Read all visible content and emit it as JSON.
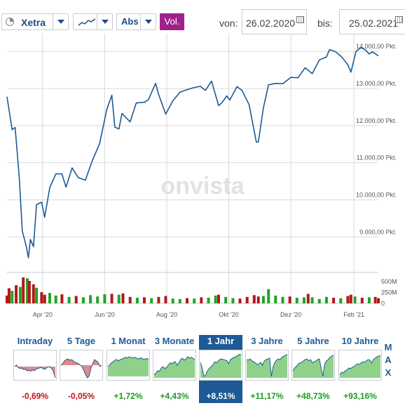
{
  "toolbar": {
    "exchange": "Xetra",
    "mode": "Abs",
    "volume_button": "Vol.",
    "from_label": "von:",
    "from_date": "26.02.2020",
    "to_label": "bis:",
    "to_date": "25.02.2021"
  },
  "watermark": "onvista",
  "colors": {
    "line": "#1d5a96",
    "vol_up": "#22a32a",
    "vol_down": "#b01a1a",
    "active_tile": "#1d5a96",
    "vol_button": "#a0208c"
  },
  "chart_data": {
    "type": "line",
    "title": "",
    "xlabel": "",
    "ylabel": "",
    "ylim": [
      8100,
      14250
    ],
    "y_ticks": [
      "9.000,00 Pkt.",
      "10.000,00 Pkt.",
      "11.000,00 Pkt.",
      "12.000,00 Pkt.",
      "13.000,00 Pkt.",
      "14.000,00 Pkt."
    ],
    "y_tick_values": [
      9000,
      10000,
      11000,
      12000,
      13000,
      14000
    ],
    "x_ticks": [
      "Apr '20",
      "Jun '20",
      "Aug '20",
      "Okt '20",
      "Dez '20",
      "Feb '21"
    ],
    "x_tick_dates": [
      "2020-04-01",
      "2020-06-01",
      "2020-08-01",
      "2020-10-01",
      "2020-12-01",
      "2021-02-01"
    ],
    "x_range": [
      "2020-02-26",
      "2021-02-25"
    ],
    "series": [
      {
        "x": [
          "2020-02-26",
          "2020-03-02",
          "2020-03-05",
          "2020-03-09",
          "2020-03-12",
          "2020-03-16",
          "2020-03-18",
          "2020-03-20",
          "2020-03-23",
          "2020-03-26",
          "2020-03-31",
          "2020-04-03",
          "2020-04-08",
          "2020-04-14",
          "2020-04-20",
          "2020-04-24",
          "2020-04-30",
          "2020-05-06",
          "2020-05-13",
          "2020-05-20",
          "2020-05-27",
          "2020-06-03",
          "2020-06-08",
          "2020-06-11",
          "2020-06-15",
          "2020-06-18",
          "2020-06-26",
          "2020-07-02",
          "2020-07-10",
          "2020-07-14",
          "2020-07-21",
          "2020-07-24",
          "2020-07-31",
          "2020-08-07",
          "2020-08-14",
          "2020-08-20",
          "2020-08-27",
          "2020-09-03",
          "2020-09-08",
          "2020-09-14",
          "2020-09-21",
          "2020-09-24",
          "2020-09-29",
          "2020-10-02",
          "2020-10-09",
          "2020-10-14",
          "2020-10-21",
          "2020-10-28",
          "2020-10-30",
          "2020-11-04",
          "2020-11-09",
          "2020-11-16",
          "2020-11-23",
          "2020-12-01",
          "2020-12-08",
          "2020-12-15",
          "2020-12-22",
          "2020-12-29",
          "2021-01-05",
          "2021-01-08",
          "2021-01-14",
          "2021-01-20",
          "2021-01-26",
          "2021-01-29",
          "2021-02-03",
          "2021-02-08",
          "2021-02-12",
          "2021-02-16",
          "2021-02-19",
          "2021-02-25"
        ],
        "y": [
          12780,
          11890,
          11950,
          10630,
          9160,
          8740,
          8440,
          8930,
          8740,
          9870,
          9940,
          9530,
          10330,
          10700,
          10700,
          10340,
          10860,
          10600,
          10530,
          11070,
          11510,
          12430,
          12820,
          11960,
          11910,
          12330,
          12100,
          12610,
          12630,
          12700,
          13140,
          12840,
          12310,
          12670,
          12900,
          12960,
          13020,
          13060,
          12950,
          13200,
          12540,
          12610,
          12800,
          12690,
          13050,
          12950,
          12560,
          11560,
          11560,
          12480,
          13100,
          13140,
          13130,
          13300,
          13290,
          13560,
          13400,
          13770,
          13850,
          14050,
          13990,
          13850,
          13640,
          13440,
          14000,
          14100,
          14050,
          13930,
          13990,
          13880
        ]
      }
    ],
    "volume": {
      "y_ticks": [
        "500M",
        "250M",
        "0"
      ],
      "y_tick_values": [
        500,
        250,
        0
      ],
      "unit": "M",
      "values": [
        {
          "date": "2020-02-26",
          "v": 180,
          "up": false
        },
        {
          "date": "2020-02-28",
          "v": 350,
          "up": false
        },
        {
          "date": "2020-03-02",
          "v": 290,
          "up": true
        },
        {
          "date": "2020-03-06",
          "v": 420,
          "up": false
        },
        {
          "date": "2020-03-10",
          "v": 380,
          "up": true
        },
        {
          "date": "2020-03-13",
          "v": 600,
          "up": false
        },
        {
          "date": "2020-03-17",
          "v": 580,
          "up": true
        },
        {
          "date": "2020-03-19",
          "v": 520,
          "up": false
        },
        {
          "date": "2020-03-23",
          "v": 440,
          "up": false
        },
        {
          "date": "2020-03-26",
          "v": 360,
          "up": true
        },
        {
          "date": "2020-03-31",
          "v": 260,
          "up": false
        },
        {
          "date": "2020-04-03",
          "v": 200,
          "up": false
        },
        {
          "date": "2020-04-08",
          "v": 240,
          "up": true
        },
        {
          "date": "2020-04-14",
          "v": 180,
          "up": true
        },
        {
          "date": "2020-04-20",
          "v": 210,
          "up": false
        },
        {
          "date": "2020-04-27",
          "v": 150,
          "up": true
        },
        {
          "date": "2020-05-04",
          "v": 170,
          "up": false
        },
        {
          "date": "2020-05-11",
          "v": 140,
          "up": true
        },
        {
          "date": "2020-05-18",
          "v": 190,
          "up": true
        },
        {
          "date": "2020-05-25",
          "v": 160,
          "up": true
        },
        {
          "date": "2020-06-01",
          "v": 210,
          "up": true
        },
        {
          "date": "2020-06-08",
          "v": 220,
          "up": false
        },
        {
          "date": "2020-06-15",
          "v": 200,
          "up": true
        },
        {
          "date": "2020-06-19",
          "v": 230,
          "up": false
        },
        {
          "date": "2020-06-26",
          "v": 150,
          "up": false
        },
        {
          "date": "2020-07-03",
          "v": 130,
          "up": true
        },
        {
          "date": "2020-07-10",
          "v": 140,
          "up": false
        },
        {
          "date": "2020-07-17",
          "v": 120,
          "up": true
        },
        {
          "date": "2020-07-24",
          "v": 150,
          "up": false
        },
        {
          "date": "2020-07-31",
          "v": 170,
          "up": false
        },
        {
          "date": "2020-08-07",
          "v": 110,
          "up": true
        },
        {
          "date": "2020-08-14",
          "v": 100,
          "up": true
        },
        {
          "date": "2020-08-21",
          "v": 120,
          "up": false
        },
        {
          "date": "2020-08-28",
          "v": 110,
          "up": true
        },
        {
          "date": "2020-09-04",
          "v": 140,
          "up": false
        },
        {
          "date": "2020-09-11",
          "v": 130,
          "up": true
        },
        {
          "date": "2020-09-18",
          "v": 180,
          "up": true
        },
        {
          "date": "2020-09-21",
          "v": 200,
          "up": false
        },
        {
          "date": "2020-09-28",
          "v": 150,
          "up": true
        },
        {
          "date": "2020-10-05",
          "v": 120,
          "up": true
        },
        {
          "date": "2020-10-12",
          "v": 110,
          "up": false
        },
        {
          "date": "2020-10-19",
          "v": 150,
          "up": false
        },
        {
          "date": "2020-10-26",
          "v": 190,
          "up": false
        },
        {
          "date": "2020-10-30",
          "v": 160,
          "up": false
        },
        {
          "date": "2020-11-04",
          "v": 170,
          "up": true
        },
        {
          "date": "2020-11-09",
          "v": 330,
          "up": true
        },
        {
          "date": "2020-11-16",
          "v": 180,
          "up": true
        },
        {
          "date": "2020-11-23",
          "v": 150,
          "up": true
        },
        {
          "date": "2020-11-30",
          "v": 160,
          "up": false
        },
        {
          "date": "2020-12-07",
          "v": 130,
          "up": true
        },
        {
          "date": "2020-12-14",
          "v": 140,
          "up": true
        },
        {
          "date": "2020-12-18",
          "v": 220,
          "up": false
        },
        {
          "date": "2020-12-22",
          "v": 140,
          "up": true
        },
        {
          "date": "2020-12-29",
          "v": 100,
          "up": true
        },
        {
          "date": "2021-01-05",
          "v": 150,
          "up": true
        },
        {
          "date": "2021-01-12",
          "v": 130,
          "up": false
        },
        {
          "date": "2021-01-19",
          "v": 120,
          "up": true
        },
        {
          "date": "2021-01-26",
          "v": 170,
          "up": false
        },
        {
          "date": "2021-01-29",
          "v": 200,
          "up": false
        },
        {
          "date": "2021-02-02",
          "v": 160,
          "up": true
        },
        {
          "date": "2021-02-09",
          "v": 130,
          "up": false
        },
        {
          "date": "2021-02-16",
          "v": 140,
          "up": true
        },
        {
          "date": "2021-02-22",
          "v": 150,
          "up": false
        },
        {
          "date": "2021-02-25",
          "v": 120,
          "up": false
        }
      ]
    }
  },
  "tiles": [
    {
      "label": "Intraday",
      "change": "-0,69%",
      "positive": false,
      "spark": [
        0.55,
        0.5,
        0.58,
        0.62,
        0.6,
        0.66,
        0.64,
        0.7,
        0.68,
        0.72,
        0.66,
        0.7,
        0.65,
        0.62,
        0.6,
        0.58,
        0.62,
        0.65,
        0.6,
        0.55,
        0.58,
        0.62,
        0.75,
        0.95
      ],
      "baseline": 0.55
    },
    {
      "label": "5 Tage",
      "change": "-0,05%",
      "positive": false,
      "spark": [
        0.5,
        0.45,
        0.35,
        0.3,
        0.28,
        0.32,
        0.3,
        0.35,
        0.4,
        0.42,
        0.45,
        0.5,
        0.55,
        0.7,
        0.85,
        0.95,
        0.88,
        0.6,
        0.45,
        0.3,
        0.35,
        0.4,
        0.55,
        0.5
      ],
      "baseline": 0.5
    },
    {
      "label": "1 Monat",
      "change": "+1,72%",
      "positive": true,
      "spark": [
        0.55,
        0.5,
        0.42,
        0.38,
        0.32,
        0.3,
        0.35,
        0.3,
        0.28,
        0.25,
        0.22,
        0.24,
        0.2,
        0.22,
        0.25,
        0.22,
        0.24,
        0.28,
        0.26,
        0.24,
        0.3,
        0.28,
        0.26,
        0.3
      ],
      "baseline": 0.9
    },
    {
      "label": "3 Monate",
      "change": "+4,43%",
      "positive": true,
      "spark": [
        0.85,
        0.78,
        0.7,
        0.72,
        0.6,
        0.55,
        0.62,
        0.58,
        0.5,
        0.42,
        0.45,
        0.4,
        0.38,
        0.5,
        0.42,
        0.3,
        0.25,
        0.32,
        0.28,
        0.2,
        0.25,
        0.22,
        0.26,
        0.3
      ],
      "baseline": 0.95
    },
    {
      "label": "1 Jahr",
      "change": "+8,51%",
      "positive": true,
      "active": true,
      "spark": [
        0.4,
        0.6,
        0.9,
        0.85,
        0.7,
        0.62,
        0.55,
        0.5,
        0.38,
        0.42,
        0.36,
        0.3,
        0.28,
        0.3,
        0.32,
        0.34,
        0.45,
        0.3,
        0.26,
        0.22,
        0.2,
        0.16,
        0.12,
        0.12
      ],
      "baseline": 0.95
    },
    {
      "label": "3 Jahre",
      "change": "+11,17%",
      "positive": true,
      "spark": [
        0.3,
        0.32,
        0.28,
        0.35,
        0.38,
        0.42,
        0.48,
        0.45,
        0.4,
        0.5,
        0.35,
        0.3,
        0.28,
        0.25,
        0.9,
        0.55,
        0.4,
        0.32,
        0.28,
        0.3,
        0.22,
        0.18,
        0.15,
        0.12
      ],
      "baseline": 0.95
    },
    {
      "label": "5 Jahre",
      "change": "+48,73%",
      "positive": true,
      "spark": [
        0.7,
        0.6,
        0.55,
        0.45,
        0.42,
        0.4,
        0.35,
        0.3,
        0.28,
        0.35,
        0.3,
        0.42,
        0.38,
        0.35,
        0.3,
        0.28,
        0.6,
        0.9,
        0.45,
        0.35,
        0.3,
        0.22,
        0.18,
        0.15
      ],
      "baseline": 0.95
    },
    {
      "label": "10 Jahre",
      "change": "+93,16%",
      "positive": true,
      "spark": [
        0.85,
        0.75,
        0.78,
        0.7,
        0.68,
        0.6,
        0.62,
        0.58,
        0.55,
        0.5,
        0.45,
        0.48,
        0.42,
        0.38,
        0.4,
        0.35,
        0.3,
        0.32,
        0.42,
        0.3,
        0.25,
        0.2,
        0.18,
        0.15
      ],
      "baseline": 0.95
    }
  ],
  "max_label": "MAX"
}
